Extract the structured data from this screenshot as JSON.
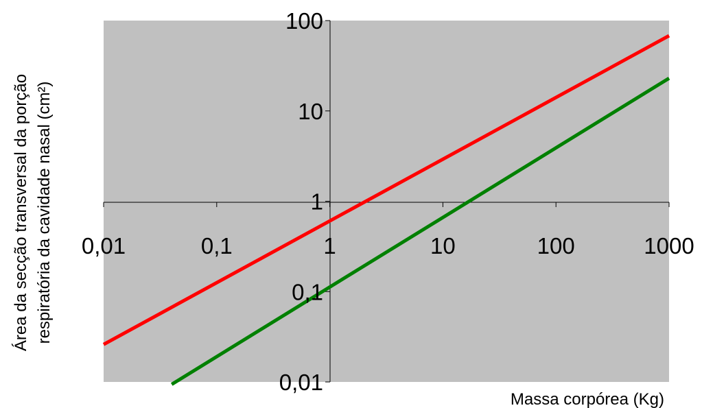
{
  "chart_data": {
    "type": "line",
    "x_scale": "log",
    "y_scale": "log",
    "xlim": [
      0.01,
      1000
    ],
    "ylim": [
      0.01,
      100
    ],
    "x_ticks": [
      "0,01",
      "0,1",
      "1",
      "10",
      "100",
      "1000"
    ],
    "y_ticks": [
      "0,01",
      "0,1",
      "1",
      "10",
      "100"
    ],
    "xlabel": "Massa corpórea (Kg)",
    "ylabel_line1": "Área da secção transversal da porção",
    "ylabel_line2": "respiratória da cavidade nasal (cm²)",
    "plot_background": "#c0c0c0",
    "grid": false,
    "series": [
      {
        "color": "#ff0000",
        "x": [
          0.01,
          1000
        ],
        "y": [
          0.026,
          68
        ]
      },
      {
        "color": "#008000",
        "x": [
          0.04,
          1000
        ],
        "y": [
          0.0094,
          23
        ]
      }
    ]
  }
}
